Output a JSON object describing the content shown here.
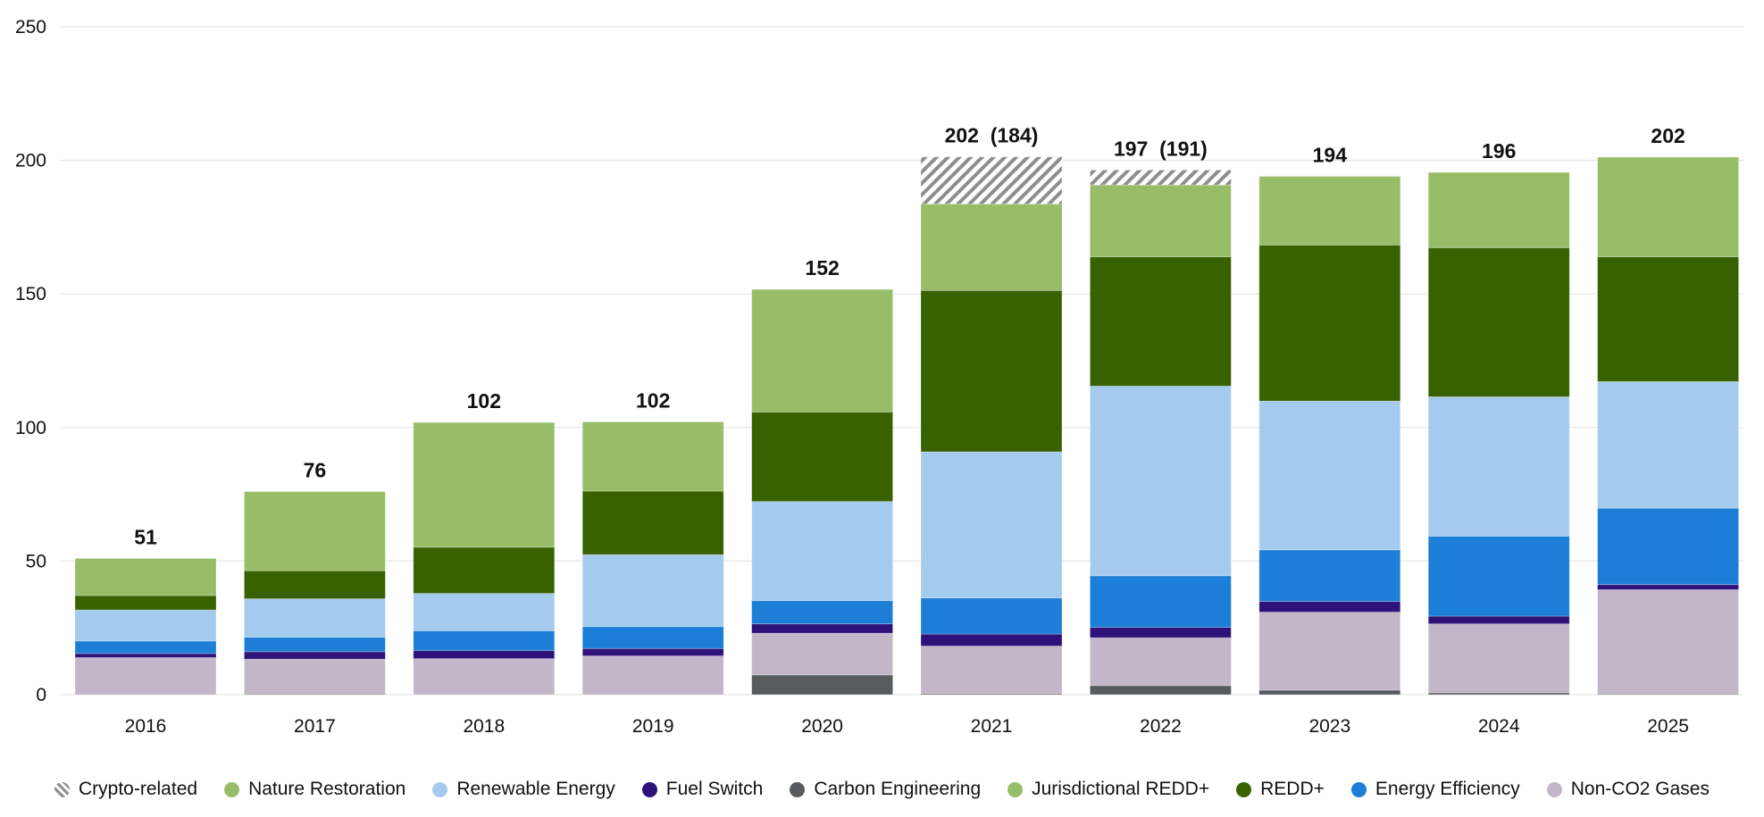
{
  "chart_data": {
    "type": "bar",
    "stacked": true,
    "title": "",
    "xlabel": "",
    "ylabel": "",
    "ylim": [
      0,
      250
    ],
    "yticks": [
      0,
      50,
      100,
      150,
      200,
      250
    ],
    "grid": true,
    "legend_position": "bottom",
    "categories": [
      "2016",
      "2017",
      "2018",
      "2019",
      "2020",
      "2021",
      "2022",
      "2023",
      "2024",
      "2025"
    ],
    "total_labels": [
      "51",
      "76",
      "102",
      "102",
      "152",
      "202  (184)",
      "197  (191)",
      "194",
      "196",
      "202"
    ],
    "series": [
      {
        "name": "Carbon Engineering",
        "color": "#575b5e",
        "values": [
          0,
          0.3,
          0,
          0,
          7.4,
          0.4,
          3.4,
          1.7,
          0.7,
          0.3
        ]
      },
      {
        "name": "Non-CO2 Gases",
        "color": "#c3b6c8",
        "values": [
          13.9,
          13.0,
          13.5,
          14.5,
          15.6,
          17.8,
          17.9,
          29.2,
          25.8,
          39.0
        ]
      },
      {
        "name": "Fuel Switch",
        "color": "#2e1179",
        "values": [
          1.5,
          2.8,
          3.0,
          2.8,
          3.5,
          4.5,
          3.9,
          4.0,
          2.9,
          1.9
        ]
      },
      {
        "name": "Energy Efficiency",
        "color": "#1c7ed6",
        "values": [
          4.7,
          5.4,
          7.4,
          8.2,
          8.7,
          13.5,
          19.3,
          19.3,
          29.9,
          28.6
        ]
      },
      {
        "name": "Renewable Energy",
        "color": "#a4cbee",
        "values": [
          11.6,
          14.4,
          14.0,
          26.9,
          37.1,
          54.7,
          71.0,
          55.7,
          52.2,
          47.4
        ]
      },
      {
        "name": "REDD+",
        "color": "#386100",
        "values": [
          5.4,
          10.5,
          17.3,
          23.8,
          33.5,
          60.4,
          48.4,
          58.4,
          55.8,
          46.7
        ]
      },
      {
        "name": "Jurisdictional REDD+",
        "color": "#97be68",
        "values": [
          0,
          0,
          0,
          0,
          0,
          0,
          0,
          0,
          0,
          0
        ]
      },
      {
        "name": "Nature Restoration",
        "color": "#98bd69",
        "values": [
          13.9,
          29.6,
          46.7,
          25.9,
          45.9,
          32.4,
          26.9,
          25.7,
          28.2,
          37.3
        ]
      },
      {
        "name": "Crypto-related",
        "color": "hatched",
        "values": [
          0,
          0,
          0,
          0,
          0,
          17.6,
          5.6,
          0,
          0,
          0
        ]
      }
    ]
  },
  "legend": [
    {
      "name": "Crypto-related",
      "color": "hatched"
    },
    {
      "name": "Nature Restoration",
      "color": "#98bd69"
    },
    {
      "name": "Renewable Energy",
      "color": "#a4cbee"
    },
    {
      "name": "Fuel Switch",
      "color": "#2e1179"
    },
    {
      "name": "Carbon Engineering",
      "color": "#575b5e"
    },
    {
      "name": "Jurisdictional REDD+",
      "color": "#97be68"
    },
    {
      "name": "REDD+",
      "color": "#386100"
    },
    {
      "name": "Energy Efficiency",
      "color": "#1c7ed6"
    },
    {
      "name": "Non-CO2 Gases",
      "color": "#c3b6c8"
    }
  ]
}
